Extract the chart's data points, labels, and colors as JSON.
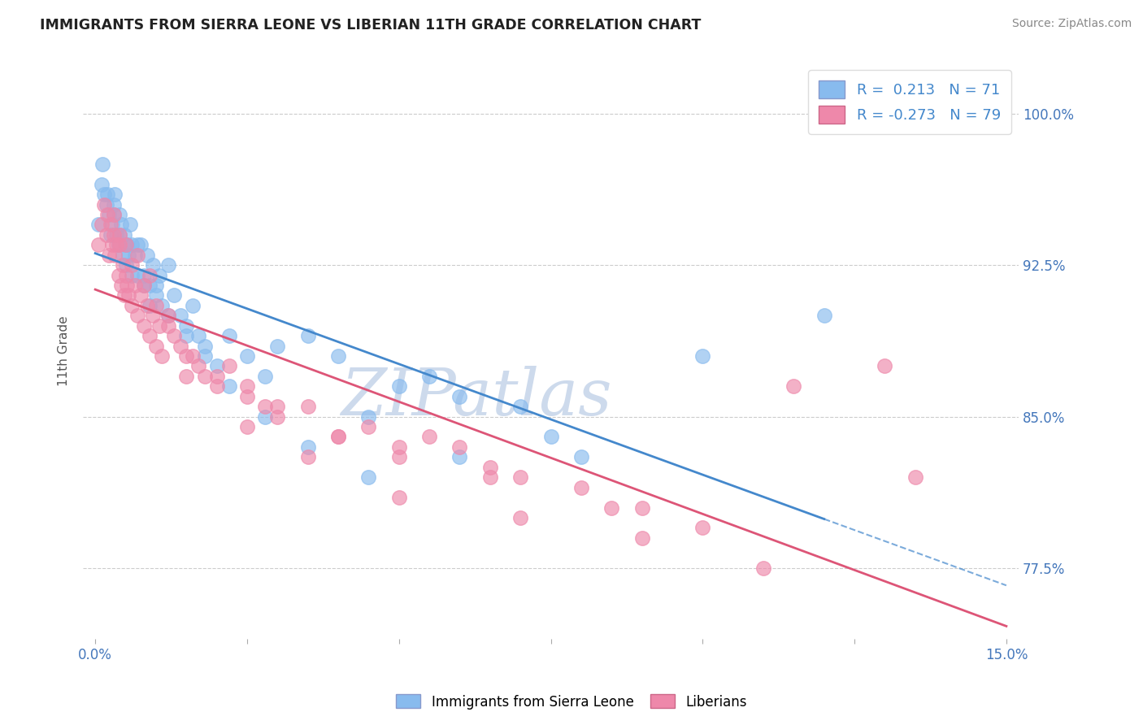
{
  "title": "IMMIGRANTS FROM SIERRA LEONE VS LIBERIAN 11TH GRADE CORRELATION CHART",
  "source": "Source: ZipAtlas.com",
  "ylabel": "11th Grade",
  "y_ticks": [
    77.5,
    85.0,
    92.5,
    100.0
  ],
  "y_tick_labels": [
    "77.5%",
    "85.0%",
    "92.5%",
    "100.0%"
  ],
  "x_min": 0.0,
  "x_max": 15.0,
  "y_min": 74.0,
  "y_max": 102.5,
  "series1_color": "#88bbee",
  "series2_color": "#ee88aa",
  "trend1_color": "#4488cc",
  "trend2_color": "#dd5577",
  "watermark": "ZIPatlas",
  "watermark_color_zip": "#c8d8ee",
  "watermark_color_atlas": "#aac8e8",
  "legend_label1": "R =  0.213   N = 71",
  "legend_label2": "R = -0.273   N = 79",
  "legend_color": "#4488cc",
  "blue_x": [
    0.05,
    0.1,
    0.12,
    0.15,
    0.18,
    0.2,
    0.22,
    0.25,
    0.28,
    0.3,
    0.32,
    0.35,
    0.38,
    0.4,
    0.42,
    0.45,
    0.48,
    0.5,
    0.52,
    0.55,
    0.58,
    0.6,
    0.65,
    0.7,
    0.75,
    0.8,
    0.85,
    0.9,
    0.95,
    1.0,
    1.05,
    1.1,
    1.2,
    1.3,
    1.4,
    1.5,
    1.6,
    1.7,
    1.8,
    2.0,
    2.2,
    2.5,
    2.8,
    3.0,
    3.5,
    4.0,
    4.5,
    5.0,
    5.5,
    6.0,
    7.0,
    8.0,
    0.3,
    0.4,
    0.5,
    0.6,
    0.7,
    0.8,
    0.9,
    1.0,
    1.2,
    1.5,
    1.8,
    2.2,
    2.8,
    3.5,
    4.5,
    6.0,
    7.5,
    10.0,
    12.0
  ],
  "blue_y": [
    94.5,
    96.5,
    97.5,
    96.0,
    95.5,
    96.0,
    95.0,
    94.0,
    94.5,
    95.5,
    96.0,
    94.0,
    93.5,
    95.0,
    94.5,
    93.0,
    94.0,
    92.5,
    93.5,
    93.0,
    94.5,
    93.5,
    93.0,
    92.0,
    93.5,
    92.0,
    93.0,
    91.5,
    92.5,
    91.0,
    92.0,
    90.5,
    92.5,
    91.0,
    90.0,
    89.5,
    90.5,
    89.0,
    88.5,
    87.5,
    89.0,
    88.0,
    87.0,
    88.5,
    89.0,
    88.0,
    85.0,
    86.5,
    87.0,
    86.0,
    85.5,
    83.0,
    95.0,
    94.0,
    93.5,
    92.0,
    93.5,
    91.5,
    90.5,
    91.5,
    90.0,
    89.0,
    88.0,
    86.5,
    85.0,
    83.5,
    82.0,
    83.0,
    84.0,
    88.0,
    90.0
  ],
  "pink_x": [
    0.05,
    0.1,
    0.15,
    0.18,
    0.2,
    0.22,
    0.25,
    0.28,
    0.3,
    0.32,
    0.35,
    0.38,
    0.4,
    0.42,
    0.45,
    0.48,
    0.5,
    0.52,
    0.55,
    0.6,
    0.65,
    0.7,
    0.75,
    0.8,
    0.85,
    0.9,
    0.95,
    1.0,
    1.05,
    1.1,
    1.2,
    1.3,
    1.4,
    1.5,
    1.6,
    1.7,
    1.8,
    2.0,
    2.2,
    2.5,
    2.8,
    3.0,
    3.5,
    4.0,
    4.5,
    5.0,
    5.5,
    6.0,
    6.5,
    7.0,
    8.0,
    9.0,
    10.0,
    0.3,
    0.4,
    0.5,
    0.6,
    0.7,
    0.8,
    0.9,
    1.0,
    1.2,
    1.5,
    2.0,
    2.5,
    3.0,
    4.0,
    5.0,
    6.5,
    8.5,
    11.5,
    2.5,
    3.5,
    5.0,
    7.0,
    9.0,
    11.0,
    13.5,
    13.0
  ],
  "pink_y": [
    93.5,
    94.5,
    95.5,
    94.0,
    95.0,
    93.0,
    94.5,
    93.5,
    94.0,
    93.0,
    93.5,
    92.0,
    93.5,
    91.5,
    92.5,
    91.0,
    92.0,
    91.5,
    91.0,
    90.5,
    91.5,
    90.0,
    91.0,
    89.5,
    90.5,
    89.0,
    90.0,
    88.5,
    89.5,
    88.0,
    90.0,
    89.0,
    88.5,
    87.0,
    88.0,
    87.5,
    87.0,
    86.5,
    87.5,
    86.0,
    85.5,
    85.0,
    85.5,
    84.0,
    84.5,
    83.0,
    84.0,
    83.5,
    82.5,
    82.0,
    81.5,
    80.5,
    79.5,
    95.0,
    94.0,
    93.5,
    92.5,
    93.0,
    91.5,
    92.0,
    90.5,
    89.5,
    88.0,
    87.0,
    86.5,
    85.5,
    84.0,
    83.5,
    82.0,
    80.5,
    86.5,
    84.5,
    83.0,
    81.0,
    80.0,
    79.0,
    77.5,
    82.0,
    87.5
  ]
}
